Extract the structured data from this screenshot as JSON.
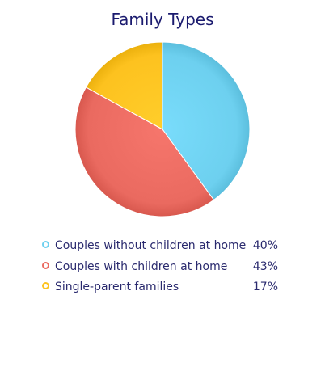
{
  "chart_data": {
    "type": "pie",
    "title": "Family Types",
    "slices": [
      {
        "label": "Couples without children at home",
        "value": 40,
        "display": "40%",
        "color": "#6dd0ef"
      },
      {
        "label": "Couples with children at home",
        "value": 43,
        "display": "43%",
        "color": "#ea6a60"
      },
      {
        "label": "Single-parent families",
        "value": 17,
        "display": "17%",
        "color": "#fdc21f"
      }
    ],
    "legend_position": "bottom"
  }
}
